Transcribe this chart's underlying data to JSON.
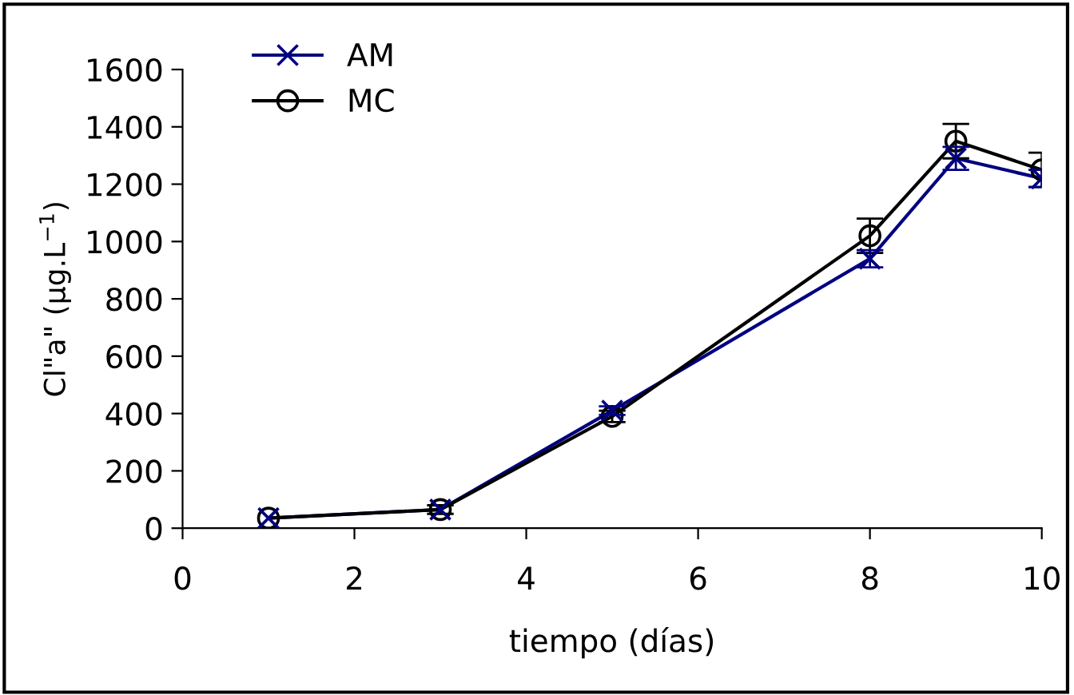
{
  "chart_data": {
    "type": "line",
    "xlabel": "tiempo (días)",
    "ylabel": "Cl\"a\" (µg.L$^{−1}$)",
    "x": [
      1,
      3,
      5,
      8,
      9,
      10
    ],
    "series": [
      {
        "name": "AM",
        "color": "#000080",
        "marker": "cross",
        "values": [
          35,
          65,
          410,
          940,
          1290,
          1220
        ],
        "errors": [
          null,
          null,
          15,
          30,
          40,
          30
        ]
      },
      {
        "name": "MC",
        "color": "#000000",
        "marker": "circle",
        "values": [
          35,
          65,
          390,
          1020,
          1350,
          1250
        ],
        "errors": [
          null,
          15,
          20,
          60,
          60,
          60
        ]
      }
    ],
    "xlim": [
      0,
      10
    ],
    "xticks": [
      0,
      2,
      4,
      6,
      8,
      10
    ],
    "ylim": [
      0,
      1600
    ],
    "yticks": [
      0,
      200,
      400,
      600,
      800,
      1000,
      1200,
      1400,
      1600
    ],
    "grid": false,
    "legend": "top left",
    "line_style": "solid"
  }
}
